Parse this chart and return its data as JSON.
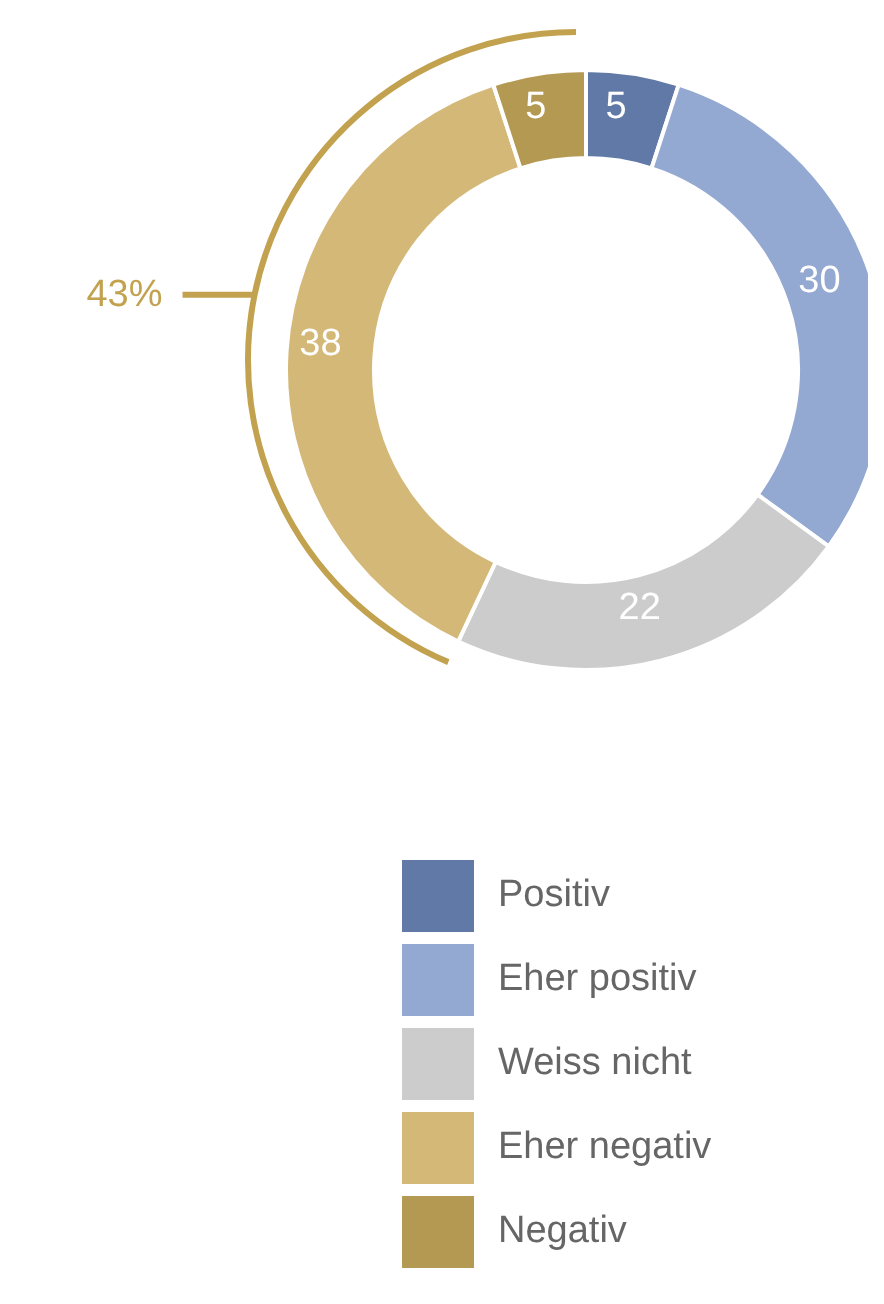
{
  "chart_data": {
    "type": "donut",
    "categories": [
      "Positiv",
      "Eher positiv",
      "Weiss nicht",
      "Eher negativ",
      "Negativ"
    ],
    "values": [
      5,
      30,
      22,
      38,
      5
    ],
    "colors": [
      "#6079a6",
      "#93a9d1",
      "#cccccc",
      "#d4b877",
      "#b39952"
    ],
    "data_labels": true,
    "legend": "bottom",
    "annotations": [
      "43%"
    ]
  }
}
